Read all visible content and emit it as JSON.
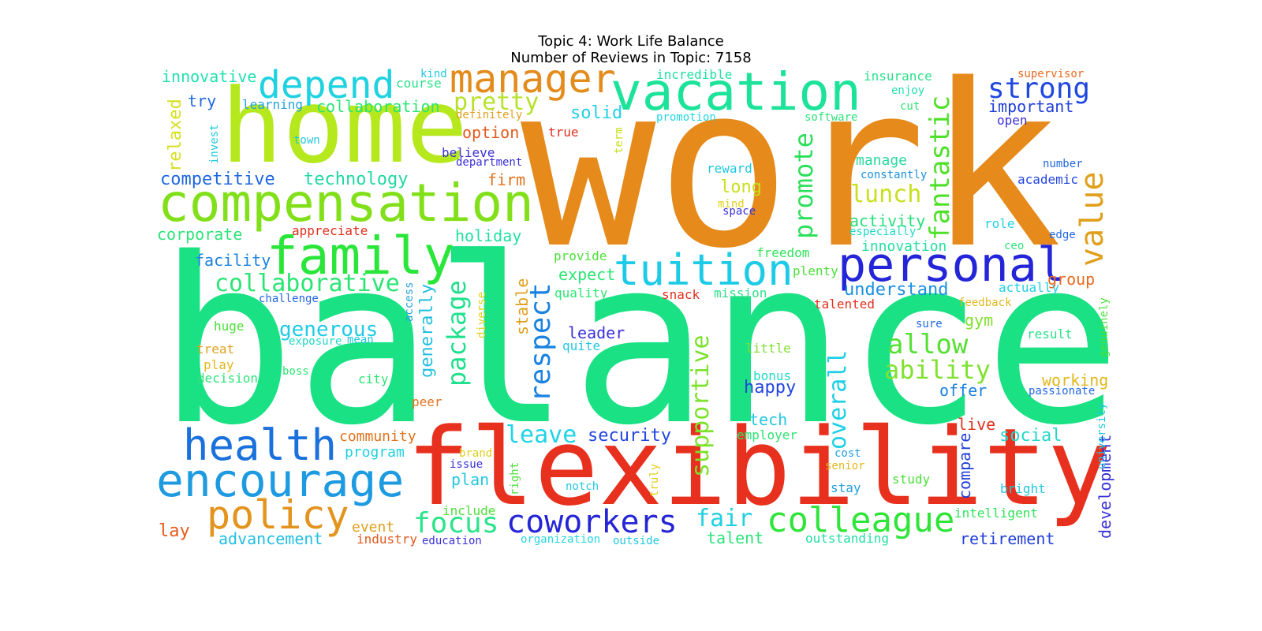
{
  "title": "Topic 4: Work Life Balance",
  "subtitle": "Number of Reviews in Topic: 7158",
  "words": [
    {
      "text": "work",
      "color": "#e58a1b"
    },
    {
      "text": "balance",
      "color": "#1ae184"
    },
    {
      "text": "flexibility",
      "color": "#e8301e"
    },
    {
      "text": "home",
      "color": "#b6e81e"
    },
    {
      "text": "compensation",
      "color": "#82e01a"
    },
    {
      "text": "family",
      "color": "#2be63a"
    },
    {
      "text": "vacation",
      "color": "#1de39a"
    },
    {
      "text": "personal",
      "color": "#2425d8"
    },
    {
      "text": "tuition",
      "color": "#1dcbe6"
    },
    {
      "text": "encourage",
      "color": "#1e9be0"
    },
    {
      "text": "health",
      "color": "#1a71dc"
    },
    {
      "text": "manager",
      "color": "#e38c1c"
    },
    {
      "text": "depend",
      "color": "#1fd2e0"
    },
    {
      "text": "policy",
      "color": "#e3941e"
    },
    {
      "text": "colleague",
      "color": "#2fe53a"
    },
    {
      "text": "coworkers",
      "color": "#2525d6"
    },
    {
      "text": "respect",
      "color": "#1a82e0"
    },
    {
      "text": "value",
      "color": "#e0a01c"
    },
    {
      "text": "strong",
      "color": "#2048e0"
    },
    {
      "text": "fantastic",
      "color": "#4fe02a"
    },
    {
      "text": "promote",
      "color": "#2be05a"
    },
    {
      "text": "package",
      "color": "#1fe08c"
    },
    {
      "text": "supportive",
      "color": "#7ce22e"
    },
    {
      "text": "overall",
      "color": "#1ed0e6"
    },
    {
      "text": "focus",
      "color": "#2ae58a"
    },
    {
      "text": "collaborative",
      "color": "#2be573"
    },
    {
      "text": "allow",
      "color": "#56e034"
    },
    {
      "text": "ability",
      "color": "#80e22e"
    },
    {
      "text": "pretty",
      "color": "#b6e22a"
    },
    {
      "text": "lunch",
      "color": "#c8e01e"
    },
    {
      "text": "leave",
      "color": "#1ed4e6"
    },
    {
      "text": "fair",
      "color": "#22d0e0"
    },
    {
      "text": "generous",
      "color": "#1fcbe6"
    },
    {
      "text": "security",
      "color": "#2245e0"
    },
    {
      "text": "generally",
      "color": "#22bfe0"
    },
    {
      "text": "competitive",
      "color": "#2068e0"
    },
    {
      "text": "technology",
      "color": "#22d8a0"
    },
    {
      "text": "relaxed",
      "color": "#d6e022"
    },
    {
      "text": "innovative",
      "color": "#22e0b0"
    },
    {
      "text": "corporate",
      "color": "#2ee37a"
    },
    {
      "text": "holiday",
      "color": "#22e0a0"
    },
    {
      "text": "solid",
      "color": "#22d0e6"
    },
    {
      "text": "stable",
      "color": "#e0a01c"
    },
    {
      "text": "understand",
      "color": "#1a90e0"
    },
    {
      "text": "innovation",
      "color": "#22dfa2"
    },
    {
      "text": "activity",
      "color": "#26e07a"
    },
    {
      "text": "manage",
      "color": "#2ad8a0"
    },
    {
      "text": "long",
      "color": "#c8e01e"
    },
    {
      "text": "important",
      "color": "#2240d8"
    },
    {
      "text": "happy",
      "color": "#2245e0"
    },
    {
      "text": "group",
      "color": "#e86a1e"
    },
    {
      "text": "social",
      "color": "#22d8c8"
    },
    {
      "text": "program",
      "color": "#22d0e0"
    },
    {
      "text": "community",
      "color": "#e0721e"
    },
    {
      "text": "advancement",
      "color": "#22bfe0"
    },
    {
      "text": "retirement",
      "color": "#2240d8"
    },
    {
      "text": "talent",
      "color": "#2ee37a"
    },
    {
      "text": "working",
      "color": "#e0b81e"
    },
    {
      "text": "compare",
      "color": "#2240d8"
    },
    {
      "text": "development",
      "color": "#3830d8"
    },
    {
      "text": "live",
      "color": "#e0301e"
    },
    {
      "text": "offer",
      "color": "#1a82e0"
    },
    {
      "text": "gym",
      "color": "#82e02e"
    },
    {
      "text": "expect",
      "color": "#2be573"
    },
    {
      "text": "leader",
      "color": "#3a30d8"
    },
    {
      "text": "facility",
      "color": "#1a82e0"
    },
    {
      "text": "firm",
      "color": "#e0721e"
    },
    {
      "text": "option",
      "color": "#e05a1e"
    },
    {
      "text": "plan",
      "color": "#22c8e0"
    },
    {
      "text": "event",
      "color": "#e0a01c"
    },
    {
      "text": "industry",
      "color": "#e05a1e"
    },
    {
      "text": "education",
      "color": "#3a30d8"
    },
    {
      "text": "outside",
      "color": "#22c8e0"
    },
    {
      "text": "outstanding",
      "color": "#22e0a0"
    },
    {
      "text": "intelligent",
      "color": "#2ee35a"
    },
    {
      "text": "include",
      "color": "#4ce03a"
    },
    {
      "text": "lay",
      "color": "#e85a1e"
    },
    {
      "text": "tech",
      "color": "#22c8e0"
    },
    {
      "text": "try",
      "color": "#2268e0"
    },
    {
      "text": "collaboration",
      "color": "#2be573"
    },
    {
      "text": "learning",
      "color": "#22a0e0"
    },
    {
      "text": "course",
      "color": "#2be08a"
    },
    {
      "text": "definitely",
      "color": "#e0a01c"
    },
    {
      "text": "believe",
      "color": "#3a30d8"
    },
    {
      "text": "department",
      "color": "#3a30d8"
    },
    {
      "text": "invest",
      "color": "#22c8e0"
    },
    {
      "text": "town",
      "color": "#22c8e0"
    },
    {
      "text": "kind",
      "color": "#22c8e0"
    },
    {
      "text": "incredible",
      "color": "#22e0a0"
    },
    {
      "text": "insurance",
      "color": "#2be08a"
    },
    {
      "text": "enjoy",
      "color": "#22e0b0"
    },
    {
      "text": "cut",
      "color": "#2be573"
    },
    {
      "text": "supervisor",
      "color": "#e86a1e"
    },
    {
      "text": "open",
      "color": "#3a30d8"
    },
    {
      "text": "software",
      "color": "#2ee37a"
    },
    {
      "text": "promotion",
      "color": "#22d8e0"
    },
    {
      "text": "true",
      "color": "#e0301e"
    },
    {
      "text": "term",
      "color": "#c8e01e"
    },
    {
      "text": "reward",
      "color": "#22c8e0"
    },
    {
      "text": "mind",
      "color": "#e0d01e"
    },
    {
      "text": "space",
      "color": "#3a30d8"
    },
    {
      "text": "constantly",
      "color": "#1a90e0"
    },
    {
      "text": "especially",
      "color": "#22d8c8"
    },
    {
      "text": "academic",
      "color": "#2245e0"
    },
    {
      "text": "number",
      "color": "#2268e0"
    },
    {
      "text": "role",
      "color": "#22d0e0"
    },
    {
      "text": "edge",
      "color": "#2268e0"
    },
    {
      "text": "ceo",
      "color": "#2ee37a"
    },
    {
      "text": "actually",
      "color": "#22d0e0"
    },
    {
      "text": "feedback",
      "color": "#e0b81e"
    },
    {
      "text": "freedom",
      "color": "#2ee35a"
    },
    {
      "text": "plenty",
      "color": "#4ce03a"
    },
    {
      "text": "provide",
      "color": "#4ce03a"
    },
    {
      "text": "quality",
      "color": "#2be573"
    },
    {
      "text": "snack",
      "color": "#e0301e"
    },
    {
      "text": "mission",
      "color": "#2be08a"
    },
    {
      "text": "talented",
      "color": "#e0301e"
    },
    {
      "text": "appreciate",
      "color": "#e0301e"
    },
    {
      "text": "challenge",
      "color": "#2268e0"
    },
    {
      "text": "access",
      "color": "#22a0e0"
    },
    {
      "text": "diverse",
      "color": "#e0d01e"
    },
    {
      "text": "huge",
      "color": "#4ce03a"
    },
    {
      "text": "treat",
      "color": "#e0a01c"
    },
    {
      "text": "play",
      "color": "#e0b81e"
    },
    {
      "text": "decision",
      "color": "#2ee37a"
    },
    {
      "text": "exposure",
      "color": "#22d8c8"
    },
    {
      "text": "mean",
      "color": "#22c8e0"
    },
    {
      "text": "boss",
      "color": "#2be573"
    },
    {
      "text": "city",
      "color": "#2be573"
    },
    {
      "text": "peer",
      "color": "#e0721e"
    },
    {
      "text": "quite",
      "color": "#22c8e0"
    },
    {
      "text": "little",
      "color": "#82e02e"
    },
    {
      "text": "bonus",
      "color": "#22d8c8"
    },
    {
      "text": "employer",
      "color": "#2be573"
    },
    {
      "text": "sure",
      "color": "#2268e0"
    },
    {
      "text": "result",
      "color": "#2be08a"
    },
    {
      "text": "genuinely",
      "color": "#4ce03a"
    },
    {
      "text": "passionate",
      "color": "#2268e0"
    },
    {
      "text": "university",
      "color": "#22c8e0"
    },
    {
      "text": "brand",
      "color": "#e0d01e"
    },
    {
      "text": "issue",
      "color": "#3a30d8"
    },
    {
      "text": "right",
      "color": "#4ce03a"
    },
    {
      "text": "notch",
      "color": "#22c8e0"
    },
    {
      "text": "truly",
      "color": "#e0d01e"
    },
    {
      "text": "cost",
      "color": "#22a0e0"
    },
    {
      "text": "senior",
      "color": "#e0b81e"
    },
    {
      "text": "stay",
      "color": "#22a0e0"
    },
    {
      "text": "study",
      "color": "#4ce03a"
    },
    {
      "text": "bright",
      "color": "#22c8e0"
    },
    {
      "text": "organization",
      "color": "#22d8e0"
    }
  ]
}
